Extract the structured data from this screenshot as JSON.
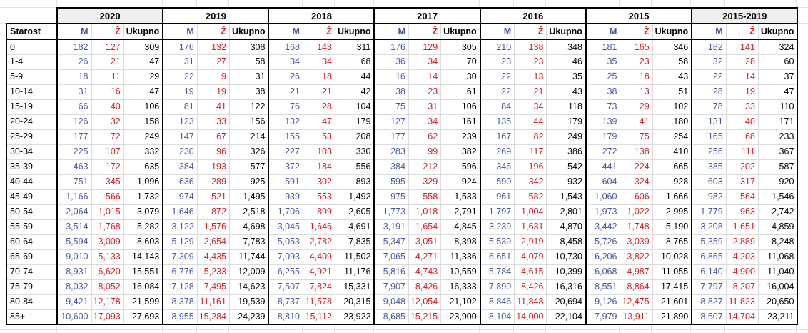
{
  "sheet": {
    "colors": {
      "male_text": "#4556a2",
      "female_text": "#cc2127",
      "total_text": "#000000",
      "shaded_header_bg": "#efefef",
      "gridline": "#e2e2e2",
      "table_border": "#000000"
    },
    "table": {
      "age_column_header": "Starost",
      "sub_headers": [
        "M",
        "Ž",
        "Ukupno"
      ],
      "year_groups": [
        {
          "label": "2020",
          "shaded": true
        },
        {
          "label": "2019",
          "shaded": false
        },
        {
          "label": "2018",
          "shaded": false
        },
        {
          "label": "2017",
          "shaded": false
        },
        {
          "label": "2016",
          "shaded": false
        },
        {
          "label": "2015",
          "shaded": false
        },
        {
          "label": "2015-2019",
          "shaded": true
        }
      ],
      "rows": [
        {
          "age": "0",
          "values": [
            [
              "182",
              "127",
              "309"
            ],
            [
              "176",
              "132",
              "308"
            ],
            [
              "168",
              "143",
              "311"
            ],
            [
              "176",
              "129",
              "305"
            ],
            [
              "210",
              "138",
              "348"
            ],
            [
              "181",
              "165",
              "346"
            ],
            [
              "182",
              "141",
              "324"
            ]
          ]
        },
        {
          "age": "1-4",
          "values": [
            [
              "26",
              "21",
              "47"
            ],
            [
              "31",
              "27",
              "58"
            ],
            [
              "34",
              "34",
              "68"
            ],
            [
              "36",
              "34",
              "70"
            ],
            [
              "23",
              "23",
              "46"
            ],
            [
              "35",
              "23",
              "58"
            ],
            [
              "32",
              "28",
              "60"
            ]
          ]
        },
        {
          "age": "5-9",
          "values": [
            [
              "18",
              "11",
              "29"
            ],
            [
              "22",
              "9",
              "31"
            ],
            [
              "26",
              "18",
              "44"
            ],
            [
              "16",
              "14",
              "30"
            ],
            [
              "22",
              "13",
              "35"
            ],
            [
              "25",
              "18",
              "43"
            ],
            [
              "22",
              "14",
              "37"
            ]
          ]
        },
        {
          "age": "10-14",
          "values": [
            [
              "31",
              "16",
              "47"
            ],
            [
              "19",
              "19",
              "38"
            ],
            [
              "21",
              "21",
              "42"
            ],
            [
              "38",
              "23",
              "61"
            ],
            [
              "22",
              "21",
              "43"
            ],
            [
              "38",
              "13",
              "51"
            ],
            [
              "28",
              "19",
              "47"
            ]
          ]
        },
        {
          "age": "15-19",
          "values": [
            [
              "66",
              "40",
              "106"
            ],
            [
              "81",
              "41",
              "122"
            ],
            [
              "76",
              "28",
              "104"
            ],
            [
              "75",
              "31",
              "106"
            ],
            [
              "84",
              "34",
              "118"
            ],
            [
              "73",
              "29",
              "102"
            ],
            [
              "78",
              "33",
              "110"
            ]
          ]
        },
        {
          "age": "20-24",
          "values": [
            [
              "126",
              "32",
              "158"
            ],
            [
              "123",
              "33",
              "156"
            ],
            [
              "132",
              "47",
              "179"
            ],
            [
              "127",
              "34",
              "161"
            ],
            [
              "135",
              "44",
              "179"
            ],
            [
              "139",
              "41",
              "180"
            ],
            [
              "131",
              "40",
              "171"
            ]
          ]
        },
        {
          "age": "25-29",
          "values": [
            [
              "177",
              "72",
              "249"
            ],
            [
              "147",
              "67",
              "214"
            ],
            [
              "155",
              "53",
              "208"
            ],
            [
              "177",
              "62",
              "239"
            ],
            [
              "167",
              "82",
              "249"
            ],
            [
              "179",
              "75",
              "254"
            ],
            [
              "165",
              "68",
              "233"
            ]
          ]
        },
        {
          "age": "30-34",
          "values": [
            [
              "225",
              "107",
              "332"
            ],
            [
              "230",
              "96",
              "326"
            ],
            [
              "227",
              "103",
              "330"
            ],
            [
              "283",
              "99",
              "382"
            ],
            [
              "269",
              "117",
              "386"
            ],
            [
              "272",
              "138",
              "410"
            ],
            [
              "256",
              "111",
              "367"
            ]
          ]
        },
        {
          "age": "35-39",
          "values": [
            [
              "463",
              "172",
              "635"
            ],
            [
              "384",
              "193",
              "577"
            ],
            [
              "372",
              "184",
              "556"
            ],
            [
              "384",
              "212",
              "596"
            ],
            [
              "346",
              "196",
              "542"
            ],
            [
              "441",
              "224",
              "665"
            ],
            [
              "385",
              "202",
              "587"
            ]
          ]
        },
        {
          "age": "40-44",
          "values": [
            [
              "751",
              "345",
              "1,096"
            ],
            [
              "636",
              "289",
              "925"
            ],
            [
              "591",
              "302",
              "893"
            ],
            [
              "595",
              "329",
              "924"
            ],
            [
              "590",
              "342",
              "932"
            ],
            [
              "604",
              "324",
              "928"
            ],
            [
              "603",
              "317",
              "920"
            ]
          ]
        },
        {
          "age": "45-49",
          "values": [
            [
              "1,166",
              "566",
              "1,732"
            ],
            [
              "974",
              "521",
              "1,495"
            ],
            [
              "939",
              "553",
              "1,492"
            ],
            [
              "975",
              "558",
              "1,533"
            ],
            [
              "961",
              "582",
              "1,543"
            ],
            [
              "1,060",
              "606",
              "1,666"
            ],
            [
              "982",
              "564",
              "1,546"
            ]
          ]
        },
        {
          "age": "50-54",
          "values": [
            [
              "2,064",
              "1,015",
              "3,079"
            ],
            [
              "1,646",
              "872",
              "2,518"
            ],
            [
              "1,706",
              "899",
              "2,605"
            ],
            [
              "1,773",
              "1,018",
              "2,791"
            ],
            [
              "1,797",
              "1,004",
              "2,801"
            ],
            [
              "1,973",
              "1,022",
              "2,995"
            ],
            [
              "1,779",
              "963",
              "2,742"
            ]
          ]
        },
        {
          "age": "55-59",
          "values": [
            [
              "3,514",
              "1,768",
              "5,282"
            ],
            [
              "3,122",
              "1,576",
              "4,698"
            ],
            [
              "3,045",
              "1,646",
              "4,691"
            ],
            [
              "3,191",
              "1,654",
              "4,845"
            ],
            [
              "3,239",
              "1,631",
              "4,870"
            ],
            [
              "3,442",
              "1,748",
              "5,190"
            ],
            [
              "3,208",
              "1,651",
              "4,859"
            ]
          ]
        },
        {
          "age": "60-64",
          "values": [
            [
              "5,594",
              "3,009",
              "8,603"
            ],
            [
              "5,129",
              "2,654",
              "7,783"
            ],
            [
              "5,053",
              "2,782",
              "7,835"
            ],
            [
              "5,347",
              "3,051",
              "8,398"
            ],
            [
              "5,539",
              "2,919",
              "8,458"
            ],
            [
              "5,726",
              "3,039",
              "8,765"
            ],
            [
              "5,359",
              "2,889",
              "8,248"
            ]
          ]
        },
        {
          "age": "65-69",
          "values": [
            [
              "9,010",
              "5,133",
              "14,143"
            ],
            [
              "7,309",
              "4,435",
              "11,744"
            ],
            [
              "7,093",
              "4,409",
              "11,502"
            ],
            [
              "7,065",
              "4,271",
              "11,336"
            ],
            [
              "6,651",
              "4,079",
              "10,730"
            ],
            [
              "6,206",
              "3,822",
              "10,028"
            ],
            [
              "6,865",
              "4,203",
              "11,068"
            ]
          ]
        },
        {
          "age": "70-74",
          "values": [
            [
              "8,931",
              "6,620",
              "15,551"
            ],
            [
              "6,776",
              "5,233",
              "12,009"
            ],
            [
              "6,255",
              "4,921",
              "11,176"
            ],
            [
              "5,816",
              "4,743",
              "10,559"
            ],
            [
              "5,784",
              "4,615",
              "10,399"
            ],
            [
              "6,068",
              "4,987",
              "11,055"
            ],
            [
              "6,140",
              "4,900",
              "11,040"
            ]
          ]
        },
        {
          "age": "75-79",
          "values": [
            [
              "8,032",
              "8,052",
              "16,084"
            ],
            [
              "7,128",
              "7,495",
              "14,623"
            ],
            [
              "7,507",
              "7,824",
              "15,331"
            ],
            [
              "7,907",
              "8,426",
              "16,333"
            ],
            [
              "7,890",
              "8,426",
              "16,316"
            ],
            [
              "8,551",
              "8,864",
              "17,415"
            ],
            [
              "7,797",
              "8,207",
              "16,004"
            ]
          ]
        },
        {
          "age": "80-84",
          "values": [
            [
              "9,421",
              "12,178",
              "21,599"
            ],
            [
              "8,378",
              "11,161",
              "19,539"
            ],
            [
              "8,737",
              "11,578",
              "20,315"
            ],
            [
              "9,048",
              "12,054",
              "21,102"
            ],
            [
              "8,846",
              "11,848",
              "20,694"
            ],
            [
              "9,126",
              "12,475",
              "21,601"
            ],
            [
              "8,827",
              "11,823",
              "20,650"
            ]
          ]
        },
        {
          "age": "85+",
          "values": [
            [
              "10,600",
              "17,093",
              "27,693"
            ],
            [
              "8,955",
              "15,284",
              "24,239"
            ],
            [
              "8,810",
              "15,112",
              "23,922"
            ],
            [
              "8,685",
              "15,215",
              "23,900"
            ],
            [
              "8,104",
              "14,000",
              "22,104"
            ],
            [
              "7,979",
              "13,911",
              "21,890"
            ],
            [
              "8,507",
              "14,704",
              "23,211"
            ]
          ]
        }
      ]
    }
  }
}
